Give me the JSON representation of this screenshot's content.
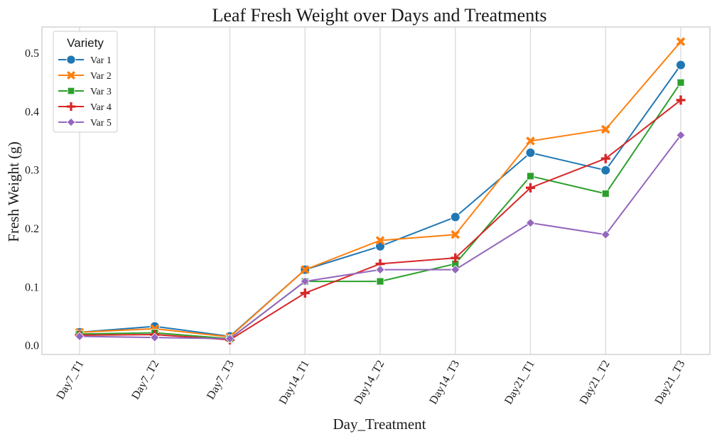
{
  "chart_data": {
    "type": "line",
    "title": "Leaf Fresh Weight over Days and Treatments",
    "xlabel": "Day_Treatment",
    "ylabel": "Fresh Weight (g)",
    "categories": [
      "Day7_T1",
      "Day7_T2",
      "Day7_T3",
      "Day14_T1",
      "Day14_T2",
      "Day14_T3",
      "Day21_T1",
      "Day21_T2",
      "Day21_T3"
    ],
    "ylim": [
      -0.015,
      0.545
    ],
    "yticks": [
      "0.0",
      "0.1",
      "0.2",
      "0.3",
      "0.4",
      "0.5"
    ],
    "grid": "vertical",
    "legend_title": "Variety",
    "legend_position": "top-left",
    "series": [
      {
        "name": "Var 1",
        "color": "#1f77b4",
        "marker": "circle",
        "values": [
          0.023,
          0.033,
          0.016,
          0.13,
          0.17,
          0.22,
          0.33,
          0.3,
          0.48
        ]
      },
      {
        "name": "Var 2",
        "color": "#ff7f0e",
        "marker": "x",
        "values": [
          0.023,
          0.029,
          0.015,
          0.13,
          0.18,
          0.19,
          0.35,
          0.37,
          0.52
        ]
      },
      {
        "name": "Var 3",
        "color": "#2ca02c",
        "marker": "square",
        "values": [
          0.02,
          0.022,
          0.012,
          0.11,
          0.11,
          0.14,
          0.29,
          0.26,
          0.45
        ]
      },
      {
        "name": "Var 4",
        "color": "#d62728",
        "marker": "plus",
        "values": [
          0.018,
          0.019,
          0.01,
          0.09,
          0.14,
          0.15,
          0.27,
          0.32,
          0.42
        ]
      },
      {
        "name": "Var 5",
        "color": "#9467bd",
        "marker": "diamond",
        "values": [
          0.016,
          0.014,
          0.012,
          0.11,
          0.13,
          0.13,
          0.21,
          0.19,
          0.36
        ]
      }
    ]
  }
}
